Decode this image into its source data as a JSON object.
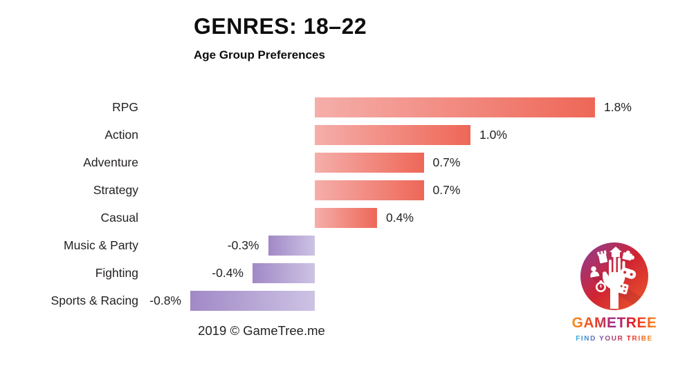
{
  "chart_data": {
    "type": "bar",
    "orientation": "horizontal",
    "title": "GENRES: 18–22",
    "subtitle": "Age Group Preferences",
    "categories": [
      "RPG",
      "Action",
      "Adventure",
      "Strategy",
      "Casual",
      "Music & Party",
      "Fighting",
      "Sports & Racing"
    ],
    "values": [
      1.8,
      1.0,
      0.7,
      0.7,
      0.4,
      -0.3,
      -0.4,
      -0.8
    ],
    "value_labels": [
      "1.8%",
      "1.0%",
      "0.7%",
      "0.7%",
      "0.4%",
      "-0.3%",
      "-0.4%",
      "-0.8%"
    ],
    "xlabel": "",
    "ylabel": "",
    "xlim": [
      -0.9,
      2.0
    ],
    "grid": false,
    "legend": false,
    "colors": {
      "positive_gradient_start": "#f5aeaa",
      "positive_gradient_end": "#ee6757",
      "negative_gradient_start": "#a189c6",
      "negative_gradient_end": "#cdc3e4"
    }
  },
  "footer": {
    "credit": "2019 © GameTree.me"
  },
  "logo": {
    "brand": "GAMETREE",
    "tagline": "FIND YOUR TRIBE",
    "circle_gradient": [
      "#8a3f98",
      "#d02433",
      "#ef5a28"
    ],
    "brand_gradient": [
      "#f7941d",
      "#ed3b24",
      "#92278f",
      "#ed1c24",
      "#f7941d"
    ],
    "tagline_gradient": [
      "#29abe2",
      "#7b52a1",
      "#ed1c24",
      "#f7941d"
    ],
    "icon_names": [
      "castle-icon",
      "house-icon",
      "puzzle-icon",
      "meeple-icon",
      "stopwatch-icon",
      "hand-icon",
      "controller-icon",
      "dice-icon"
    ]
  }
}
